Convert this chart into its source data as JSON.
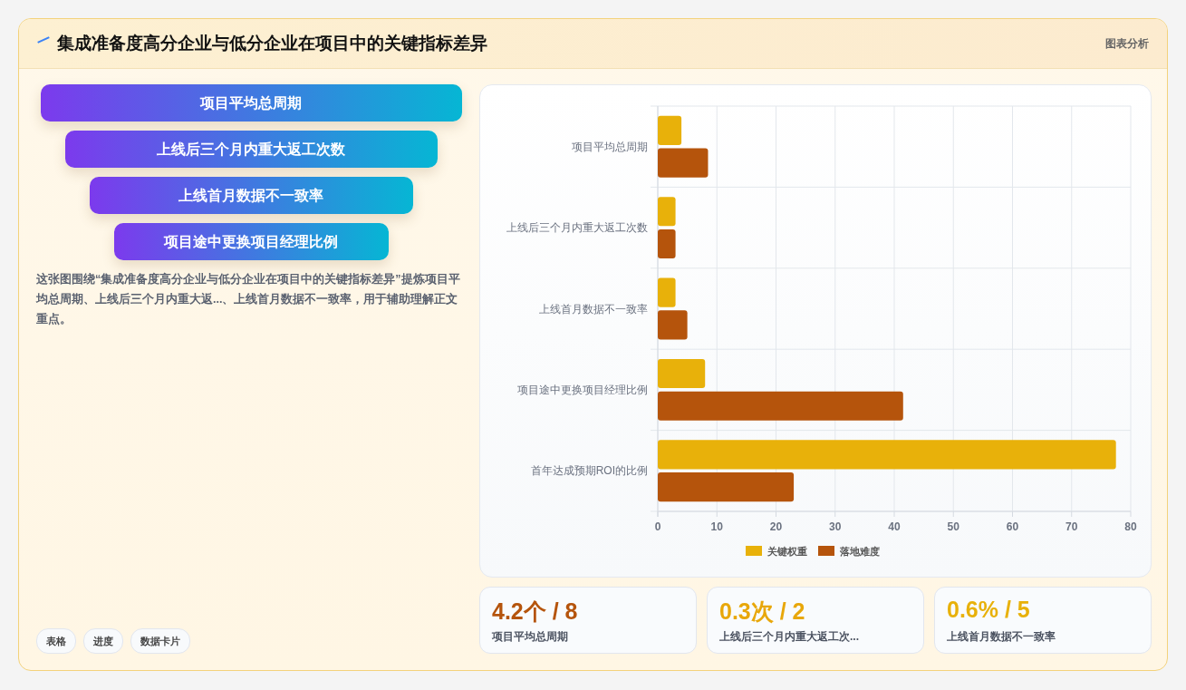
{
  "chart_data": [
    {
      "type": "other",
      "title": "集成准备度高分企业与低分企业在项目中的关键指标差异",
      "categories": [
        "项目平均总周期",
        "上线后三个月内重大返工次数",
        "上线首月数据不一致率",
        "项目途中更换项目经理比例"
      ],
      "annotations": [
        "图表分析",
        "这张图围绕“集成准备度高分企业与低分企业在项目中的关键指标差异”提炼项目平均总周期、上线后三个月内重大返...、上线首月数据不一致率，用于辅助理解正文重点。",
        "表格",
        "进度",
        "数据卡片"
      ]
    },
    {
      "type": "bar",
      "orientation": "horizontal",
      "categories": [
        "项目平均总周期",
        "上线后三个月内重大返工次数",
        "上线首月数据不一致率",
        "项目途中更换项目经理比例",
        "首年达成预期ROI的比例"
      ],
      "series": [
        {
          "name": "关键权重",
          "color": "#e8b10a",
          "values": [
            4,
            3,
            3,
            8,
            77.5
          ]
        },
        {
          "name": "落地难度",
          "color": "#b5540c",
          "values": [
            8.5,
            3,
            5,
            41.5,
            23
          ]
        }
      ],
      "xlim": [
        0,
        80
      ],
      "xticks": [
        0,
        10,
        20,
        30,
        40,
        50,
        60,
        70,
        80
      ],
      "grid": true,
      "legend": "bottom"
    },
    {
      "type": "other",
      "colors": [
        "#b5540c",
        "#e8a70a",
        "#e8b10a"
      ],
      "annotations": [
        "4.2个 / 8",
        "项目平均总周期",
        "0.3次 / 2",
        "上线后三个月内重大返工次...",
        "0.6% / 5",
        "上线首月数据不一致率"
      ]
    }
  ]
}
